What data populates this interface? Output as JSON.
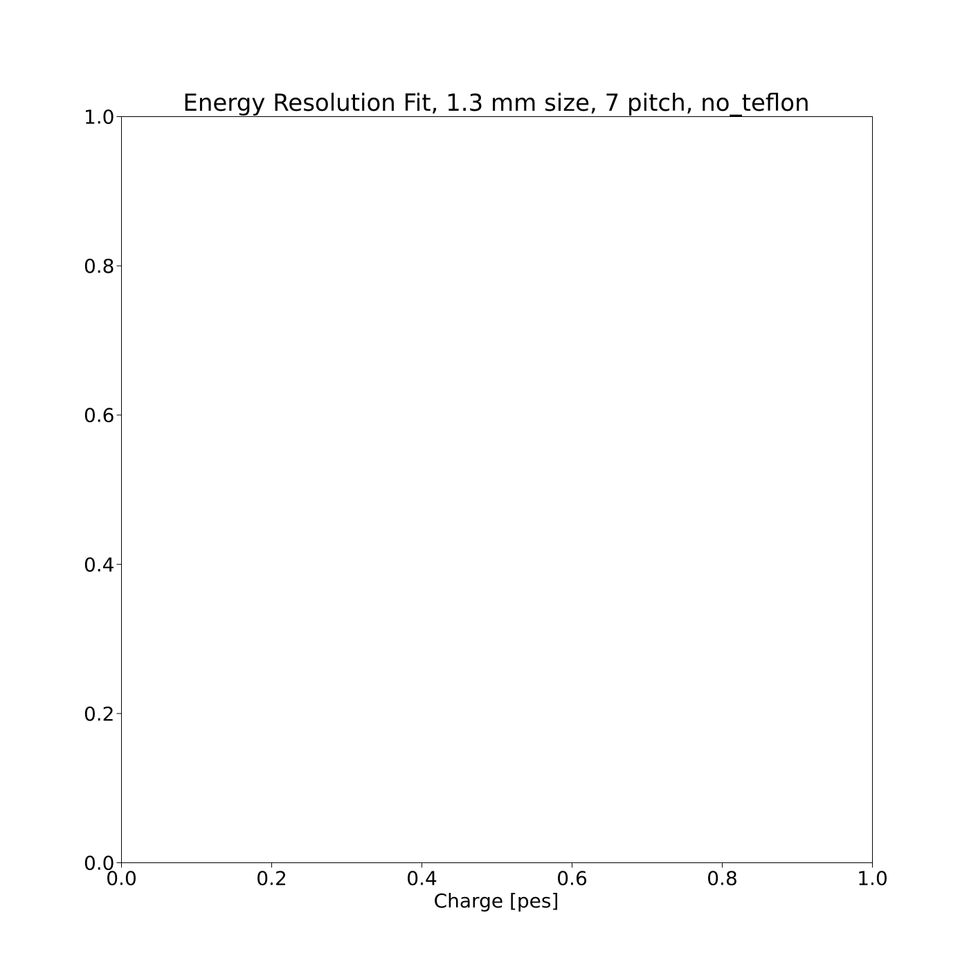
{
  "chart_data": {
    "type": "scatter",
    "title": "Energy Resolution Fit, 1.3 mm size, 7 pitch, no_teflon",
    "xlabel": "Charge [pes]",
    "ylabel": "",
    "xlim": [
      0.0,
      1.0
    ],
    "ylim": [
      0.0,
      1.0
    ],
    "x_ticks": [
      "0.0",
      "0.2",
      "0.4",
      "0.6",
      "0.8",
      "1.0"
    ],
    "y_ticks": [
      "0.0",
      "0.2",
      "0.4",
      "0.6",
      "0.8",
      "1.0"
    ],
    "grid": false,
    "series": []
  },
  "colors": {
    "axes": "#000000",
    "background": "#ffffff"
  }
}
